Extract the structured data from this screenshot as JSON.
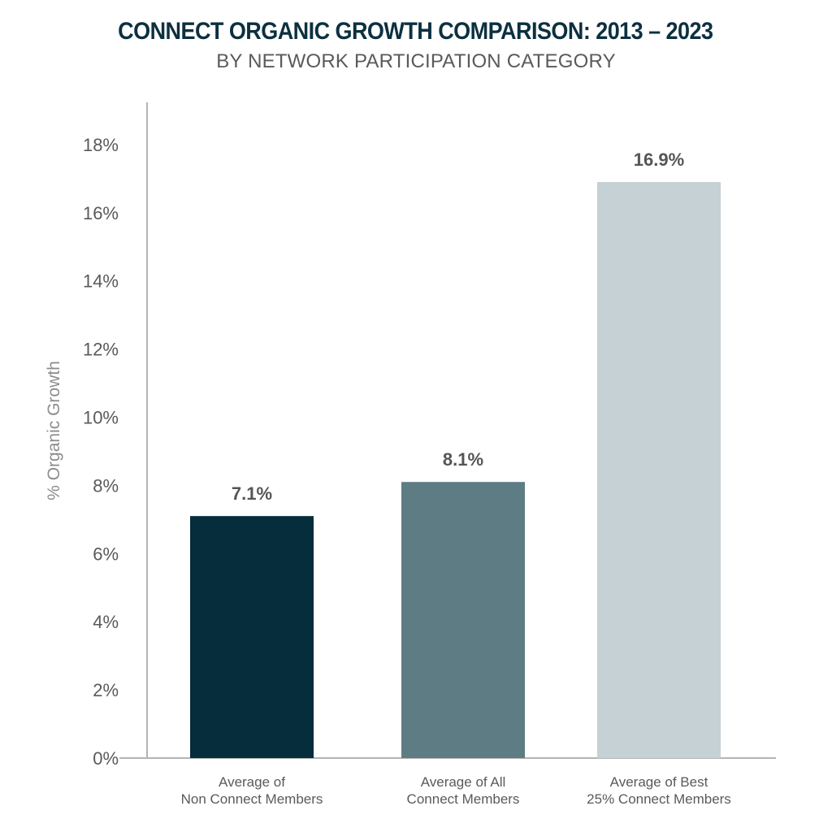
{
  "chart_data": {
    "type": "bar",
    "title": "CONNECT ORGANIC GROWTH COMPARISON: 2013 – 2023",
    "subtitle": "BY NETWORK PARTICIPATION CATEGORY",
    "xlabel": "",
    "ylabel": "% Organic Growth",
    "ylim": [
      0,
      19
    ],
    "yticks": [
      0,
      2,
      4,
      6,
      8,
      10,
      12,
      14,
      16,
      18
    ],
    "ytick_labels": [
      "0%",
      "2%",
      "4%",
      "6%",
      "8%",
      "10%",
      "12%",
      "14%",
      "16%",
      "18%"
    ],
    "grid": false,
    "categories": [
      [
        "Average of",
        "Non Connect Members"
      ],
      [
        "Average of All",
        "Connect Members"
      ],
      [
        "Average of Best",
        "25% Connect Members"
      ]
    ],
    "values": [
      7.1,
      8.1,
      16.9
    ],
    "data_labels": [
      "7.1%",
      "8.1%",
      "16.9%"
    ],
    "colors": [
      "#052d3c",
      "#5d7c84",
      "#c6d1d6"
    ]
  }
}
